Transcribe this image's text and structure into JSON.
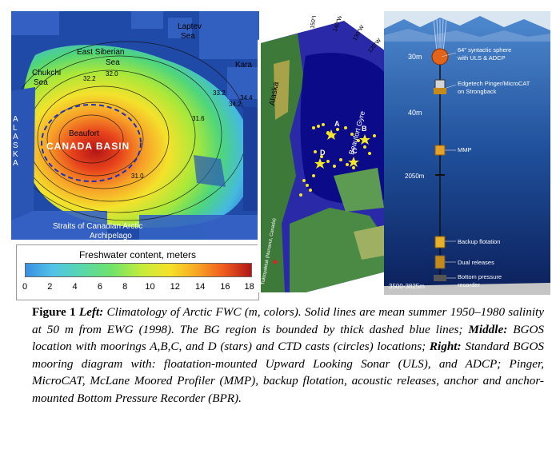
{
  "left_map": {
    "labels": {
      "laptev": "Laptev",
      "laptev_sea": "Sea",
      "east_siberian": "East Siberian",
      "east_siberian_sea": "Sea",
      "chukchi": "Chukchi",
      "chukchi_sea": "Sea",
      "beaufort": "Beaufort",
      "canada_basin": "CANADA BASIN",
      "alaska": "ALASKA",
      "kara": "Kara",
      "straits": "Straits of Canadian Arctic",
      "archipelago": "Archipelago"
    },
    "contours": [
      "32.2",
      "32.0",
      "31.6",
      "31.0",
      "33.2",
      "34.2",
      "34.4"
    ]
  },
  "colorbar": {
    "title": "Freshwater content, meters",
    "ticks": [
      "0",
      "2",
      "4",
      "6",
      "8",
      "10",
      "12",
      "14",
      "16",
      "18"
    ]
  },
  "middle_map": {
    "labels": {
      "alaska": "Alaska",
      "beaufort_gyre": "Beaufort Gyre",
      "a": "A",
      "b": "B",
      "c": "C",
      "d": "D",
      "tuktoyaktuk": "Tuktoyaktuk (Nunavut, Canada)"
    },
    "lon_labels": [
      "150°W",
      "140°W",
      "130°W",
      "120°W"
    ]
  },
  "mooring": {
    "depth_30": "30m",
    "depth_40": "40m",
    "depth_2050": "2050m",
    "depth_bottom": "3500-3825m",
    "sphere_line1": "64\" syntactic sphere",
    "sphere_line2": "with ULS & ADCP",
    "pinger_line1": "Edgetech Pinger/MicroCAT",
    "pinger_line2": "on Strongback",
    "mmp": "MMP",
    "backup": "Backup flotation",
    "dual": "Dual releases",
    "bpr_line1": "Bottom pressure",
    "bpr_line2": "recorder"
  },
  "caption": {
    "fig_label": "Figure 1",
    "left_label": "Left:",
    "left_text": "Climatology of Arctic FWC (m, colors). Solid lines are mean summer 1950–1980 salinity at 50 m from EWG (1998). The BG region is bounded by thick dashed blue lines;",
    "middle_label": "Middle:",
    "middle_text": "BGOS location with moorings A,B,C, and D (stars) and CTD casts (circles) locations;",
    "right_label": "Right:",
    "right_text": "Standard BGOS mooring diagram with: floatation-mounted Upward Looking Sonar (ULS), and ADCP; Pinger, MicroCAT, McLane Moored Profiler (MMP), backup flotation, acoustic releases, anchor and anchor-mounted Bottom Pressure Recorder (BPR)."
  }
}
